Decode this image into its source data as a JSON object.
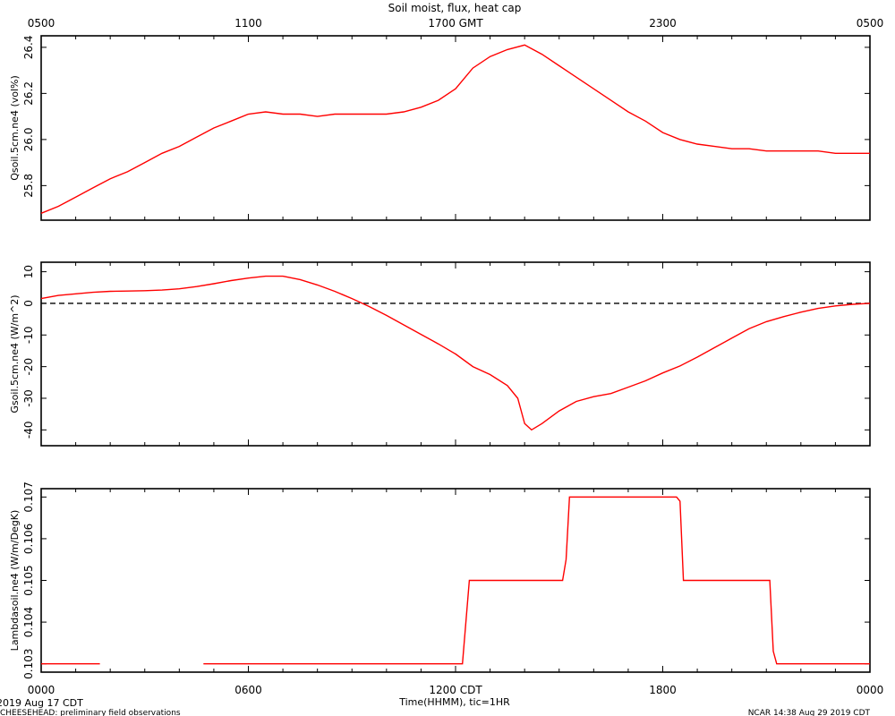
{
  "title": "Soil moist, flux, heat cap",
  "top_axis_ticks": [
    "0500",
    "1100",
    "1700 GMT",
    "2300",
    "0500"
  ],
  "bottom_axis_ticks": [
    "0000",
    "0600",
    "1200 CDT",
    "1800",
    "0000"
  ],
  "xlabel": "Time(HHMM), tic=1HR",
  "start_date": "2019 Aug 17 CDT",
  "footer_left": "CHEESEHEAD: preliminary field observations",
  "footer_right": "NCAR 14:38 Aug 29 2019 CDT",
  "colors": {
    "series": "#ff0000",
    "axes": "#000000"
  },
  "chart_data": [
    {
      "type": "line",
      "ylabel": "Qsoil.5cm.ne4 (vol%)",
      "ylim": [
        25.65,
        26.45
      ],
      "yticks": [
        25.8,
        26.0,
        26.2,
        26.4
      ],
      "ytick_labels": [
        "25.8",
        "26.0",
        "26.2",
        "26.4"
      ],
      "xlim": [
        0,
        24
      ],
      "x": [
        0,
        0.5,
        1,
        1.5,
        2,
        2.5,
        3,
        3.5,
        4,
        4.5,
        5,
        5.5,
        6,
        6.5,
        7,
        7.5,
        8,
        8.5,
        9,
        9.5,
        10,
        10.5,
        11,
        11.5,
        12,
        12.5,
        13,
        13.5,
        14,
        14.5,
        15,
        15.5,
        16,
        16.5,
        17,
        17.5,
        18,
        18.5,
        19,
        19.5,
        20,
        20.5,
        21,
        21.5,
        22,
        22.5,
        23,
        23.5,
        24
      ],
      "series": [
        {
          "values": [
            25.68,
            25.71,
            25.75,
            25.79,
            25.83,
            25.86,
            25.9,
            25.94,
            25.97,
            26.01,
            26.05,
            26.08,
            26.11,
            26.12,
            26.11,
            26.11,
            26.1,
            26.11,
            26.11,
            26.11,
            26.11,
            26.12,
            26.14,
            26.17,
            26.22,
            26.31,
            26.36,
            26.39,
            26.41,
            26.37,
            26.32,
            26.27,
            26.22,
            26.17,
            26.12,
            26.08,
            26.03,
            26.0,
            25.98,
            25.97,
            25.96,
            25.96,
            25.95,
            25.95,
            25.95,
            25.95,
            25.94,
            25.94,
            25.94
          ]
        }
      ]
    },
    {
      "type": "line",
      "ylabel": "Gsoil.5cm.ne4 (W/m^2)",
      "ylim": [
        -45,
        13
      ],
      "yticks": [
        10,
        0,
        -10,
        -20,
        -30,
        -40
      ],
      "ytick_labels": [
        "10",
        "0",
        "-10",
        "-20",
        "-30",
        "-40"
      ],
      "zero_line": 0,
      "xlim": [
        0,
        24
      ],
      "x": [
        0,
        0.5,
        1,
        1.5,
        2,
        2.5,
        3,
        3.5,
        4,
        4.5,
        5,
        5.5,
        6,
        6.5,
        7,
        7.5,
        8,
        8.5,
        9,
        9.5,
        10,
        10.5,
        11,
        11.5,
        12,
        12.5,
        13,
        13.5,
        13.8,
        14,
        14.2,
        14.5,
        15,
        15.5,
        16,
        16.5,
        17,
        17.5,
        18,
        18.5,
        19,
        19.5,
        20,
        20.5,
        21,
        21.5,
        22,
        22.5,
        23,
        23.5,
        24
      ],
      "series": [
        {
          "values": [
            1.5,
            2.5,
            3,
            3.5,
            3.8,
            3.9,
            4,
            4.2,
            4.6,
            5.3,
            6.2,
            7.2,
            8.0,
            8.6,
            8.6,
            7.5,
            5.8,
            3.8,
            1.5,
            -1.0,
            -3.8,
            -6.8,
            -9.8,
            -12.8,
            -16.0,
            -20.0,
            -22.5,
            -26.0,
            -30.0,
            -38.0,
            -40.0,
            -38.0,
            -34.0,
            -31.0,
            -29.5,
            -28.5,
            -26.5,
            -24.5,
            -22.0,
            -19.8,
            -17.0,
            -14.0,
            -11.0,
            -8.0,
            -5.8,
            -4.2,
            -2.8,
            -1.6,
            -0.8,
            -0.3,
            0.0
          ]
        }
      ]
    },
    {
      "type": "line",
      "ylabel": "Lambdasoil.ne4 (W/m/DegK)",
      "ylim": [
        0.1028,
        0.1072
      ],
      "yticks": [
        0.103,
        0.104,
        0.105,
        0.106,
        0.107
      ],
      "ytick_labels": [
        "0.103",
        "0.104",
        "0.105",
        "0.106",
        "0.107"
      ],
      "xlim": [
        0,
        24
      ],
      "segments": [
        {
          "x": [
            0,
            1.7
          ],
          "y": [
            0.103,
            0.103
          ]
        },
        {
          "x": [
            4.7,
            12.2,
            12.4,
            15.1,
            15.2,
            15.3,
            18.4,
            18.5,
            18.6,
            21.1,
            21.2,
            21.3,
            24
          ],
          "y": [
            0.103,
            0.103,
            0.105,
            0.105,
            0.1055,
            0.107,
            0.107,
            0.1069,
            0.105,
            0.105,
            0.1033,
            0.103,
            0.103
          ]
        }
      ]
    }
  ]
}
